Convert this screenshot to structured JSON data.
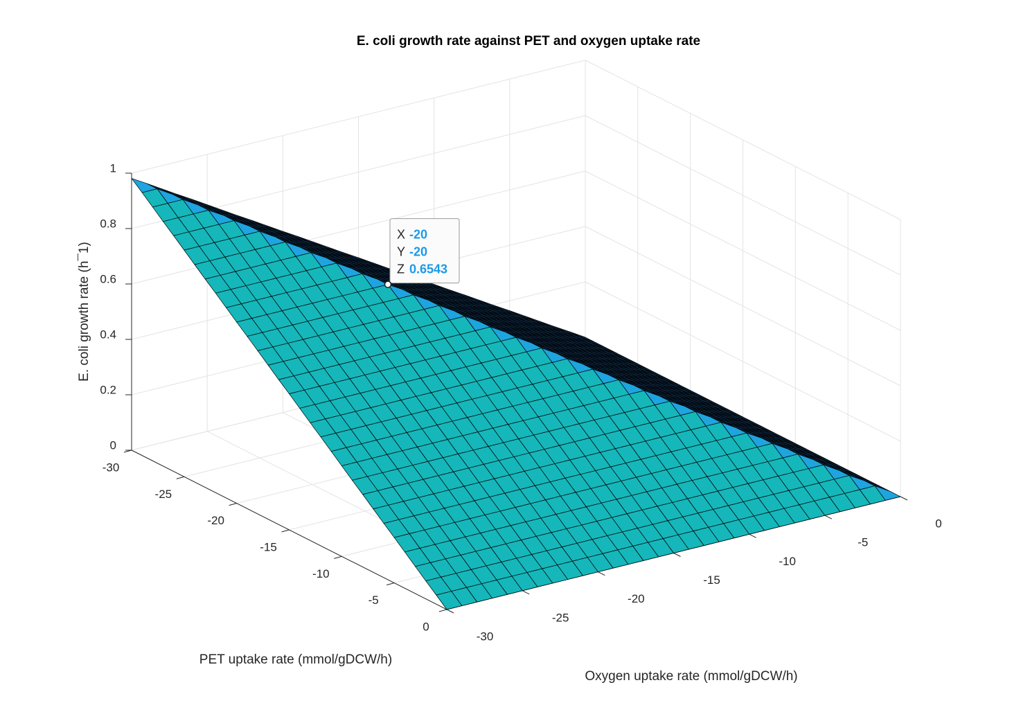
{
  "chart_data": {
    "type": "surface",
    "title": "E. coli growth rate against PET and oxygen uptake rate",
    "xlabel": "Oxygen uptake rate (mmol/gDCW/h)",
    "ylabel": "PET uptake rate (mmol/gDCW/h)",
    "zlabel": "E. coli growth rate (h¯1)",
    "x": [
      -30,
      -29,
      -28,
      -27,
      -26,
      -25,
      -24,
      -23,
      -22,
      -21,
      -20,
      -19,
      -18,
      -17,
      -16,
      -15,
      -14,
      -13,
      -12,
      -11,
      -10,
      -9,
      -8,
      -7,
      -6,
      -5,
      -4,
      -3,
      -2,
      -1,
      0
    ],
    "y": [
      -30,
      -29,
      -28,
      -27,
      -26,
      -25,
      -24,
      -23,
      -22,
      -21,
      -20,
      -19,
      -18,
      -17,
      -16,
      -15,
      -14,
      -13,
      -12,
      -11,
      -10,
      -9,
      -8,
      -7,
      -6,
      -5,
      -4,
      -3,
      -2,
      -1,
      0
    ],
    "z": [
      [
        0.981,
        0.949,
        0.916,
        0.883,
        0.851,
        0.818,
        0.785,
        0.752,
        0.72,
        0.687,
        0.654,
        0.622,
        0.589,
        0.556,
        0.523,
        0.491,
        0.458,
        0.425,
        0.393,
        0.36,
        0.327,
        0.294,
        0.262,
        0.229,
        0.196,
        0.164,
        0.131,
        0.098,
        0.065,
        0.033,
        0
      ],
      [
        0.949,
        0.949,
        0.916,
        0.883,
        0.851,
        0.818,
        0.785,
        0.752,
        0.72,
        0.687,
        0.654,
        0.622,
        0.589,
        0.556,
        0.523,
        0.491,
        0.458,
        0.425,
        0.393,
        0.36,
        0.327,
        0.294,
        0.262,
        0.229,
        0.196,
        0.164,
        0.131,
        0.098,
        0.065,
        0.033,
        0
      ],
      [
        0.916,
        0.916,
        0.916,
        0.883,
        0.851,
        0.818,
        0.785,
        0.752,
        0.72,
        0.687,
        0.654,
        0.622,
        0.589,
        0.556,
        0.523,
        0.491,
        0.458,
        0.425,
        0.393,
        0.36,
        0.327,
        0.294,
        0.262,
        0.229,
        0.196,
        0.164,
        0.131,
        0.098,
        0.065,
        0.033,
        0
      ],
      [
        0.883,
        0.883,
        0.883,
        0.883,
        0.851,
        0.818,
        0.785,
        0.752,
        0.72,
        0.687,
        0.654,
        0.622,
        0.589,
        0.556,
        0.523,
        0.491,
        0.458,
        0.425,
        0.393,
        0.36,
        0.327,
        0.294,
        0.262,
        0.229,
        0.196,
        0.164,
        0.131,
        0.098,
        0.065,
        0.033,
        0
      ],
      [
        0.851,
        0.851,
        0.851,
        0.851,
        0.851,
        0.818,
        0.785,
        0.752,
        0.72,
        0.687,
        0.654,
        0.622,
        0.589,
        0.556,
        0.523,
        0.491,
        0.458,
        0.425,
        0.393,
        0.36,
        0.327,
        0.294,
        0.262,
        0.229,
        0.196,
        0.164,
        0.131,
        0.098,
        0.065,
        0.033,
        0
      ],
      [
        0.818,
        0.818,
        0.818,
        0.818,
        0.818,
        0.818,
        0.785,
        0.752,
        0.72,
        0.687,
        0.654,
        0.622,
        0.589,
        0.556,
        0.523,
        0.491,
        0.458,
        0.425,
        0.393,
        0.36,
        0.327,
        0.294,
        0.262,
        0.229,
        0.196,
        0.164,
        0.131,
        0.098,
        0.065,
        0.033,
        0
      ],
      [
        0.785,
        0.785,
        0.785,
        0.785,
        0.785,
        0.785,
        0.785,
        0.752,
        0.72,
        0.687,
        0.654,
        0.622,
        0.589,
        0.556,
        0.523,
        0.491,
        0.458,
        0.425,
        0.393,
        0.36,
        0.327,
        0.294,
        0.262,
        0.229,
        0.196,
        0.164,
        0.131,
        0.098,
        0.065,
        0.033,
        0
      ],
      [
        0.752,
        0.752,
        0.752,
        0.752,
        0.752,
        0.752,
        0.752,
        0.752,
        0.72,
        0.687,
        0.654,
        0.622,
        0.589,
        0.556,
        0.523,
        0.491,
        0.458,
        0.425,
        0.393,
        0.36,
        0.327,
        0.294,
        0.262,
        0.229,
        0.196,
        0.164,
        0.131,
        0.098,
        0.065,
        0.033,
        0
      ],
      [
        0.72,
        0.72,
        0.72,
        0.72,
        0.72,
        0.72,
        0.72,
        0.72,
        0.72,
        0.687,
        0.654,
        0.622,
        0.589,
        0.556,
        0.523,
        0.491,
        0.458,
        0.425,
        0.393,
        0.36,
        0.327,
        0.294,
        0.262,
        0.229,
        0.196,
        0.164,
        0.131,
        0.098,
        0.065,
        0.033,
        0
      ],
      [
        0.687,
        0.687,
        0.687,
        0.687,
        0.687,
        0.687,
        0.687,
        0.687,
        0.687,
        0.687,
        0.654,
        0.622,
        0.589,
        0.556,
        0.523,
        0.491,
        0.458,
        0.425,
        0.393,
        0.36,
        0.327,
        0.294,
        0.262,
        0.229,
        0.196,
        0.164,
        0.131,
        0.098,
        0.065,
        0.033,
        0
      ],
      [
        0.654,
        0.654,
        0.654,
        0.654,
        0.654,
        0.654,
        0.654,
        0.654,
        0.654,
        0.654,
        0.654,
        0.622,
        0.589,
        0.556,
        0.523,
        0.491,
        0.458,
        0.425,
        0.393,
        0.36,
        0.327,
        0.294,
        0.262,
        0.229,
        0.196,
        0.164,
        0.131,
        0.098,
        0.065,
        0.033,
        0
      ],
      [
        0.622,
        0.622,
        0.622,
        0.622,
        0.622,
        0.622,
        0.622,
        0.622,
        0.622,
        0.622,
        0.622,
        0.622,
        0.589,
        0.556,
        0.523,
        0.491,
        0.458,
        0.425,
        0.393,
        0.36,
        0.327,
        0.294,
        0.262,
        0.229,
        0.196,
        0.164,
        0.131,
        0.098,
        0.065,
        0.033,
        0
      ],
      [
        0.589,
        0.589,
        0.589,
        0.589,
        0.589,
        0.589,
        0.589,
        0.589,
        0.589,
        0.589,
        0.589,
        0.589,
        0.589,
        0.556,
        0.523,
        0.491,
        0.458,
        0.425,
        0.393,
        0.36,
        0.327,
        0.294,
        0.262,
        0.229,
        0.196,
        0.164,
        0.131,
        0.098,
        0.065,
        0.033,
        0
      ],
      [
        0.556,
        0.556,
        0.556,
        0.556,
        0.556,
        0.556,
        0.556,
        0.556,
        0.556,
        0.556,
        0.556,
        0.556,
        0.556,
        0.556,
        0.523,
        0.491,
        0.458,
        0.425,
        0.393,
        0.36,
        0.327,
        0.294,
        0.262,
        0.229,
        0.196,
        0.164,
        0.131,
        0.098,
        0.065,
        0.033,
        0
      ],
      [
        0.523,
        0.523,
        0.523,
        0.523,
        0.523,
        0.523,
        0.523,
        0.523,
        0.523,
        0.523,
        0.523,
        0.523,
        0.523,
        0.523,
        0.523,
        0.491,
        0.458,
        0.425,
        0.393,
        0.36,
        0.327,
        0.294,
        0.262,
        0.229,
        0.196,
        0.164,
        0.131,
        0.098,
        0.065,
        0.033,
        0
      ],
      [
        0.491,
        0.491,
        0.491,
        0.491,
        0.491,
        0.491,
        0.491,
        0.491,
        0.491,
        0.491,
        0.491,
        0.491,
        0.491,
        0.491,
        0.491,
        0.491,
        0.458,
        0.425,
        0.393,
        0.36,
        0.327,
        0.294,
        0.262,
        0.229,
        0.196,
        0.164,
        0.131,
        0.098,
        0.065,
        0.033,
        0
      ],
      [
        0.458,
        0.458,
        0.458,
        0.458,
        0.458,
        0.458,
        0.458,
        0.458,
        0.458,
        0.458,
        0.458,
        0.458,
        0.458,
        0.458,
        0.458,
        0.458,
        0.458,
        0.425,
        0.393,
        0.36,
        0.327,
        0.294,
        0.262,
        0.229,
        0.196,
        0.164,
        0.131,
        0.098,
        0.065,
        0.033,
        0
      ],
      [
        0.425,
        0.425,
        0.425,
        0.425,
        0.425,
        0.425,
        0.425,
        0.425,
        0.425,
        0.425,
        0.425,
        0.425,
        0.425,
        0.425,
        0.425,
        0.425,
        0.425,
        0.425,
        0.393,
        0.36,
        0.327,
        0.294,
        0.262,
        0.229,
        0.196,
        0.164,
        0.131,
        0.098,
        0.065,
        0.033,
        0
      ],
      [
        0.393,
        0.393,
        0.393,
        0.393,
        0.393,
        0.393,
        0.393,
        0.393,
        0.393,
        0.393,
        0.393,
        0.393,
        0.393,
        0.393,
        0.393,
        0.393,
        0.393,
        0.393,
        0.393,
        0.36,
        0.327,
        0.294,
        0.262,
        0.229,
        0.196,
        0.164,
        0.131,
        0.098,
        0.065,
        0.033,
        0
      ],
      [
        0.36,
        0.36,
        0.36,
        0.36,
        0.36,
        0.36,
        0.36,
        0.36,
        0.36,
        0.36,
        0.36,
        0.36,
        0.36,
        0.36,
        0.36,
        0.36,
        0.36,
        0.36,
        0.36,
        0.36,
        0.327,
        0.294,
        0.262,
        0.229,
        0.196,
        0.164,
        0.131,
        0.098,
        0.065,
        0.033,
        0
      ],
      [
        0.327,
        0.327,
        0.327,
        0.327,
        0.327,
        0.327,
        0.327,
        0.327,
        0.327,
        0.327,
        0.327,
        0.327,
        0.327,
        0.327,
        0.327,
        0.327,
        0.327,
        0.327,
        0.327,
        0.327,
        0.327,
        0.294,
        0.262,
        0.229,
        0.196,
        0.164,
        0.131,
        0.098,
        0.065,
        0.033,
        0
      ],
      [
        0.294,
        0.294,
        0.294,
        0.294,
        0.294,
        0.294,
        0.294,
        0.294,
        0.294,
        0.294,
        0.294,
        0.294,
        0.294,
        0.294,
        0.294,
        0.294,
        0.294,
        0.294,
        0.294,
        0.294,
        0.294,
        0.294,
        0.262,
        0.229,
        0.196,
        0.164,
        0.131,
        0.098,
        0.065,
        0.033,
        0
      ],
      [
        0.262,
        0.262,
        0.262,
        0.262,
        0.262,
        0.262,
        0.262,
        0.262,
        0.262,
        0.262,
        0.262,
        0.262,
        0.262,
        0.262,
        0.262,
        0.262,
        0.262,
        0.262,
        0.262,
        0.262,
        0.262,
        0.262,
        0.262,
        0.229,
        0.196,
        0.164,
        0.131,
        0.098,
        0.065,
        0.033,
        0
      ],
      [
        0.229,
        0.229,
        0.229,
        0.229,
        0.229,
        0.229,
        0.229,
        0.229,
        0.229,
        0.229,
        0.229,
        0.229,
        0.229,
        0.229,
        0.229,
        0.229,
        0.229,
        0.229,
        0.229,
        0.229,
        0.229,
        0.229,
        0.229,
        0.229,
        0.196,
        0.164,
        0.131,
        0.098,
        0.065,
        0.033,
        0
      ],
      [
        0.196,
        0.196,
        0.196,
        0.196,
        0.196,
        0.196,
        0.196,
        0.196,
        0.196,
        0.196,
        0.196,
        0.196,
        0.196,
        0.196,
        0.196,
        0.196,
        0.196,
        0.196,
        0.196,
        0.196,
        0.196,
        0.196,
        0.196,
        0.196,
        0.196,
        0.164,
        0.131,
        0.098,
        0.065,
        0.033,
        0
      ],
      [
        0.164,
        0.164,
        0.164,
        0.164,
        0.164,
        0.164,
        0.164,
        0.164,
        0.164,
        0.164,
        0.164,
        0.164,
        0.164,
        0.164,
        0.164,
        0.164,
        0.164,
        0.164,
        0.164,
        0.164,
        0.164,
        0.164,
        0.164,
        0.164,
        0.164,
        0.164,
        0.131,
        0.098,
        0.065,
        0.033,
        0
      ],
      [
        0.131,
        0.131,
        0.131,
        0.131,
        0.131,
        0.131,
        0.131,
        0.131,
        0.131,
        0.131,
        0.131,
        0.131,
        0.131,
        0.131,
        0.131,
        0.131,
        0.131,
        0.131,
        0.131,
        0.131,
        0.131,
        0.131,
        0.131,
        0.131,
        0.131,
        0.131,
        0.131,
        0.098,
        0.065,
        0.033,
        0
      ],
      [
        0.098,
        0.098,
        0.098,
        0.098,
        0.098,
        0.098,
        0.098,
        0.098,
        0.098,
        0.098,
        0.098,
        0.098,
        0.098,
        0.098,
        0.098,
        0.098,
        0.098,
        0.098,
        0.098,
        0.098,
        0.098,
        0.098,
        0.098,
        0.098,
        0.098,
        0.098,
        0.098,
        0.098,
        0.065,
        0.033,
        0
      ],
      [
        0.065,
        0.065,
        0.065,
        0.065,
        0.065,
        0.065,
        0.065,
        0.065,
        0.065,
        0.065,
        0.065,
        0.065,
        0.065,
        0.065,
        0.065,
        0.065,
        0.065,
        0.065,
        0.065,
        0.065,
        0.065,
        0.065,
        0.065,
        0.065,
        0.065,
        0.065,
        0.065,
        0.065,
        0.065,
        0.033,
        0
      ],
      [
        0.033,
        0.033,
        0.033,
        0.033,
        0.033,
        0.033,
        0.033,
        0.033,
        0.033,
        0.033,
        0.033,
        0.033,
        0.033,
        0.033,
        0.033,
        0.033,
        0.033,
        0.033,
        0.033,
        0.033,
        0.033,
        0.033,
        0.033,
        0.033,
        0.033,
        0.033,
        0.033,
        0.033,
        0.033,
        0.033,
        0
      ],
      [
        0,
        0,
        0,
        0,
        0,
        0,
        0,
        0,
        0,
        0,
        0,
        0,
        0,
        0,
        0,
        0,
        0,
        0,
        0,
        0,
        0,
        0,
        0,
        0,
        0,
        0,
        0,
        0,
        0,
        0,
        0
      ]
    ],
    "xlim": [
      -30,
      0
    ],
    "ylim": [
      -30,
      0
    ],
    "zlim": [
      0,
      1
    ],
    "xticks": [
      -30,
      -25,
      -20,
      -15,
      -10,
      -5,
      0
    ],
    "yticks": [
      -30,
      -25,
      -20,
      -15,
      -10,
      -5,
      0
    ],
    "zticks": [
      0,
      0.2,
      0.4,
      0.6,
      0.8,
      1
    ],
    "grid": true,
    "face_colors": {
      "front": "#15b7ba",
      "ridge": "#1ea4df",
      "back": "#0d2842"
    },
    "edge_color": "#000000",
    "datatip": {
      "x_name": "X",
      "x": -20,
      "y_name": "Y",
      "y": -20,
      "z_name": "Z",
      "z": 0.6543
    }
  }
}
